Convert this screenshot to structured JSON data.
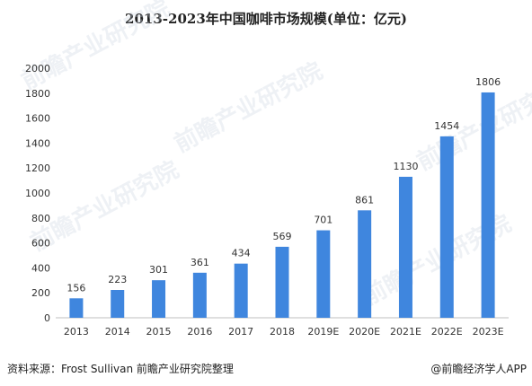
{
  "chart_data": {
    "type": "bar",
    "title": "2013-2023年中国咖啡市场规模(单位：亿元)",
    "categories": [
      "2013",
      "2014",
      "2015",
      "2016",
      "2017",
      "2018",
      "2019E",
      "2020E",
      "2021E",
      "2022E",
      "2023E"
    ],
    "values": [
      156,
      223,
      301,
      361,
      434,
      569,
      701,
      861,
      1130,
      1454,
      1806
    ],
    "ylim": [
      0,
      2000
    ],
    "yticks": [
      0,
      200,
      400,
      600,
      800,
      1000,
      1200,
      1400,
      1600,
      1800,
      2000
    ],
    "xlabel": "",
    "ylabel": "",
    "grid": false,
    "bar_color": "#3f86de",
    "data_labels": true
  },
  "footer": {
    "source": "资料来源：Frost Sullivan 前瞻产业研究院整理",
    "brand": "@前瞻经济学人APP"
  },
  "watermark": {
    "text": "前瞻产业研究院"
  }
}
